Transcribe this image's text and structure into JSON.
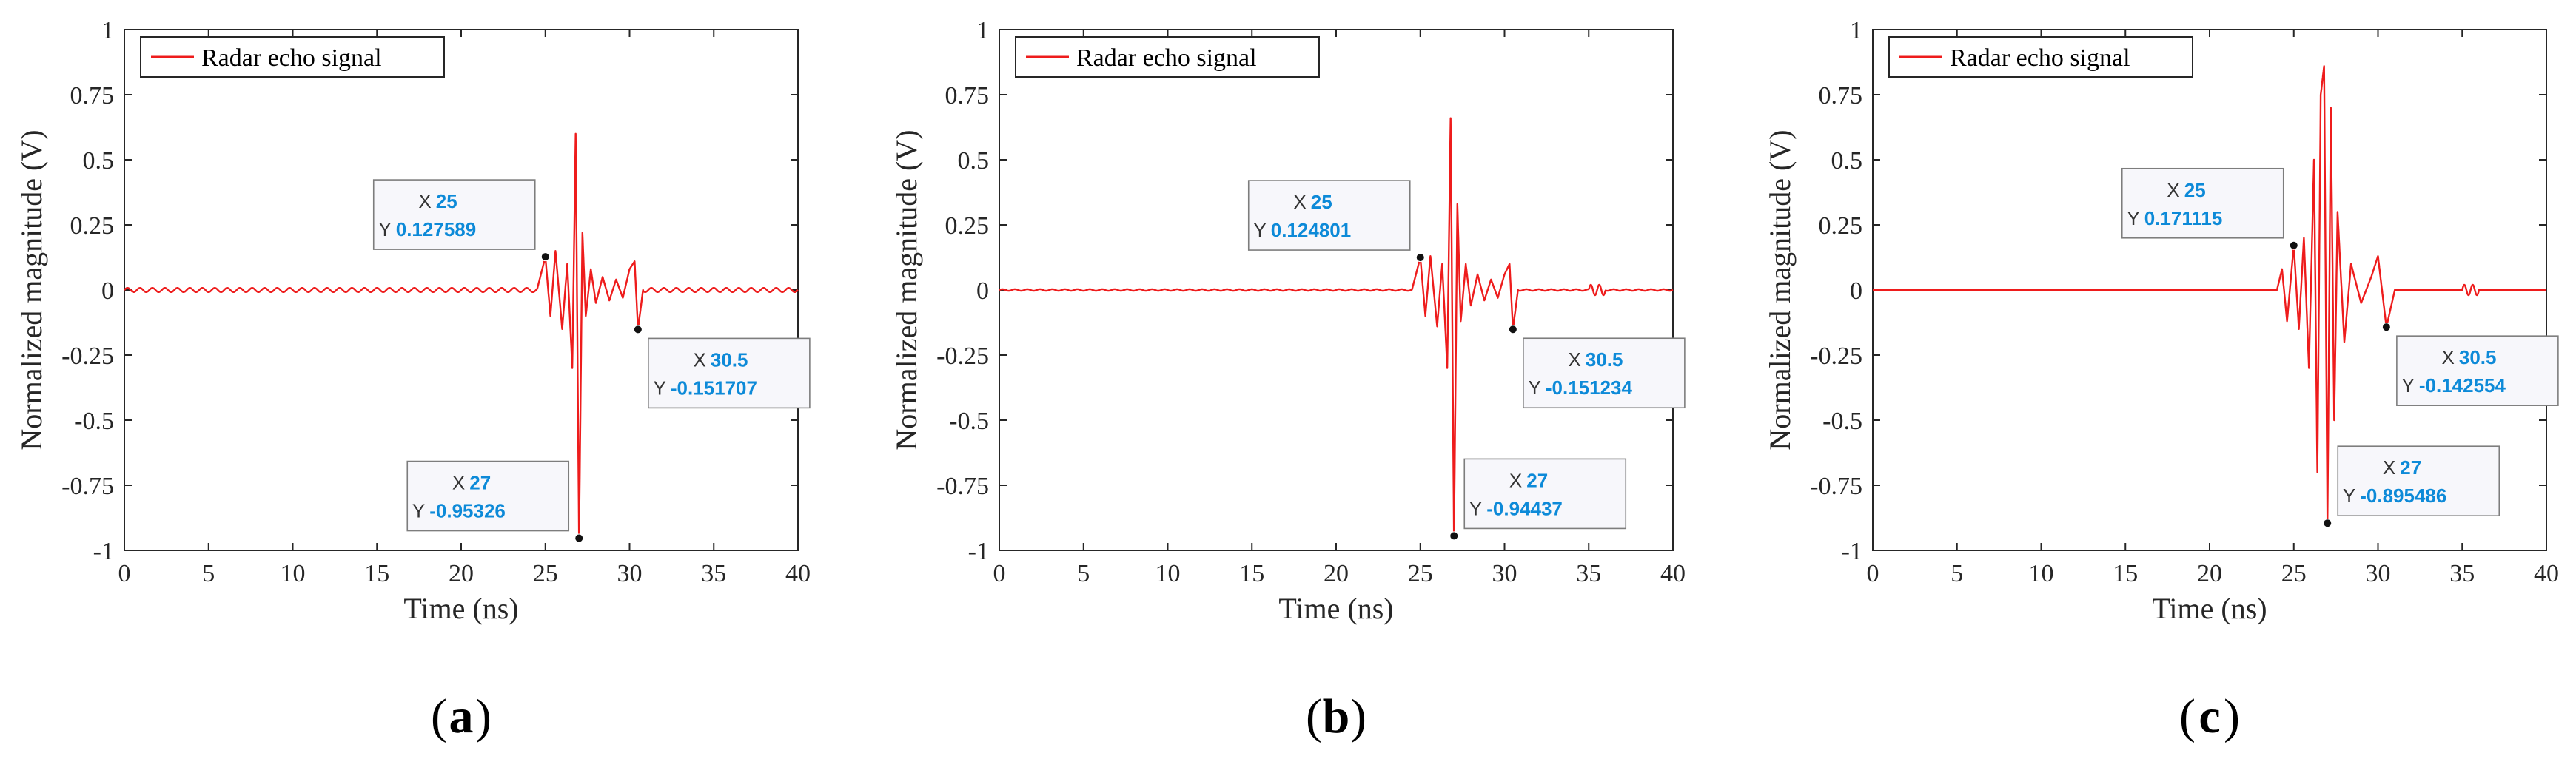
{
  "figure": {
    "legend_label": "Radar echo signal",
    "xlabel": "Time (ns)",
    "ylabel": "Normalized magnitude (V)",
    "line_color": "#ee1c1c",
    "datatip_value_color": "#0d8ad8"
  },
  "chart_data": [
    {
      "panel": "a",
      "type": "line",
      "title": "",
      "xlabel": "Time (ns)",
      "ylabel": "Normalized magnitude (V)",
      "xlim": [
        0,
        40
      ],
      "ylim": [
        -1,
        1
      ],
      "xticks": [
        "0",
        "5",
        "10",
        "15",
        "20",
        "25",
        "30",
        "35",
        "40"
      ],
      "yticks": [
        "1",
        "0.75",
        "0.5",
        "0.25",
        "0",
        "-0.25",
        "-0.5",
        "-0.75",
        "-1"
      ],
      "legend": {
        "label": "Radar echo signal",
        "location": "top-left"
      },
      "series": [
        {
          "name": "Radar echo signal",
          "x": [
            24.5,
            25,
            25.3,
            25.6,
            26.0,
            26.3,
            26.6,
            26.8,
            27,
            27.2,
            27.4,
            27.7,
            28.0,
            28.4,
            28.8,
            29.2,
            29.6,
            30.0,
            30.3,
            30.5,
            30.8
          ],
          "y": [
            0.0,
            0.127589,
            -0.1,
            0.15,
            -0.15,
            0.1,
            -0.3,
            0.6,
            -0.95326,
            0.22,
            -0.1,
            0.08,
            -0.05,
            0.05,
            -0.04,
            0.04,
            -0.03,
            0.08,
            0.11,
            -0.151707,
            0.0
          ],
          "baseline_ripple": 0.008
        }
      ],
      "annotations": [
        {
          "x_label": "X",
          "x_value": "25",
          "y_label": "Y",
          "y_value": "0.127589",
          "x": 25,
          "y": 0.127589,
          "side": "upper-left"
        },
        {
          "x_label": "X",
          "x_value": "30.5",
          "y_label": "Y",
          "y_value": "-0.151707",
          "x": 30.5,
          "y": -0.151707,
          "side": "lower-right"
        },
        {
          "x_label": "X",
          "x_value": "27",
          "y_label": "Y",
          "y_value": "-0.95326",
          "x": 27,
          "y": -0.95326,
          "side": "upper-left"
        }
      ]
    },
    {
      "panel": "b",
      "type": "line",
      "title": "",
      "xlabel": "Time (ns)",
      "ylabel": "Normalized magnitude (V)",
      "xlim": [
        0,
        40
      ],
      "ylim": [
        -1,
        1
      ],
      "xticks": [
        "0",
        "5",
        "10",
        "15",
        "20",
        "25",
        "30",
        "35",
        "40"
      ],
      "yticks": [
        "1",
        "0.75",
        "0.5",
        "0.25",
        "0",
        "-0.25",
        "-0.5",
        "-0.75",
        "-1"
      ],
      "legend": {
        "label": "Radar echo signal",
        "location": "top-left"
      },
      "series": [
        {
          "name": "Radar echo signal",
          "x": [
            24.5,
            25,
            25.3,
            25.6,
            26.0,
            26.3,
            26.6,
            26.8,
            27,
            27.2,
            27.4,
            27.7,
            28.0,
            28.4,
            28.8,
            29.2,
            29.6,
            30.0,
            30.3,
            30.5,
            30.8,
            35.5
          ],
          "y": [
            0.0,
            0.124801,
            -0.1,
            0.13,
            -0.14,
            0.1,
            -0.3,
            0.66,
            -0.94437,
            0.33,
            -0.12,
            0.1,
            -0.06,
            0.06,
            -0.04,
            0.04,
            -0.03,
            0.06,
            0.1,
            -0.151234,
            0.0,
            0.02
          ],
          "baseline_ripple": 0.003
        }
      ],
      "annotations": [
        {
          "x_label": "X",
          "x_value": "25",
          "y_label": "Y",
          "y_value": "0.124801",
          "x": 25,
          "y": 0.124801,
          "side": "upper-left"
        },
        {
          "x_label": "X",
          "x_value": "30.5",
          "y_label": "Y",
          "y_value": "-0.151234",
          "x": 30.5,
          "y": -0.151234,
          "side": "lower-right"
        },
        {
          "x_label": "X",
          "x_value": "27",
          "y_label": "Y",
          "y_value": "-0.94437",
          "x": 27,
          "y": -0.94437,
          "side": "upper-right"
        }
      ]
    },
    {
      "panel": "c",
      "type": "line",
      "title": "",
      "xlabel": "Time (ns)",
      "ylabel": "Normalized magnitude (V)",
      "xlim": [
        0,
        40
      ],
      "ylim": [
        -1,
        1
      ],
      "xticks": [
        "0",
        "5",
        "10",
        "15",
        "20",
        "25",
        "30",
        "35",
        "40"
      ],
      "yticks": [
        "1",
        "0.75",
        "0.5",
        "0.25",
        "0",
        "-0.25",
        "-0.5",
        "-0.75",
        "-1"
      ],
      "legend": {
        "label": "Radar echo signal",
        "location": "top-left"
      },
      "series": [
        {
          "name": "Radar echo signal",
          "x": [
            24.0,
            24.3,
            24.6,
            25,
            25.3,
            25.6,
            25.9,
            26.2,
            26.4,
            26.6,
            26.8,
            27,
            27.2,
            27.4,
            27.6,
            28.0,
            28.4,
            29.0,
            29.6,
            30.0,
            30.5,
            31.0,
            35.5
          ],
          "y": [
            0.0,
            0.08,
            -0.12,
            0.171115,
            -0.15,
            0.2,
            -0.3,
            0.5,
            -0.7,
            0.75,
            0.86,
            -0.895486,
            0.7,
            -0.5,
            0.3,
            -0.2,
            0.1,
            -0.05,
            0.05,
            0.13,
            -0.142554,
            0.0,
            0.02
          ],
          "baseline_ripple": 0.0
        }
      ],
      "annotations": [
        {
          "x_label": "X",
          "x_value": "25",
          "y_label": "Y",
          "y_value": "0.171115",
          "x": 25,
          "y": 0.171115,
          "side": "upper-left"
        },
        {
          "x_label": "X",
          "x_value": "30.5",
          "y_label": "Y",
          "y_value": "-0.142554",
          "x": 30.5,
          "y": -0.142554,
          "side": "lower-right"
        },
        {
          "x_label": "X",
          "x_value": "27",
          "y_label": "Y",
          "y_value": "-0.895486",
          "x": 27,
          "y": -0.895486,
          "side": "upper-right"
        }
      ]
    }
  ]
}
